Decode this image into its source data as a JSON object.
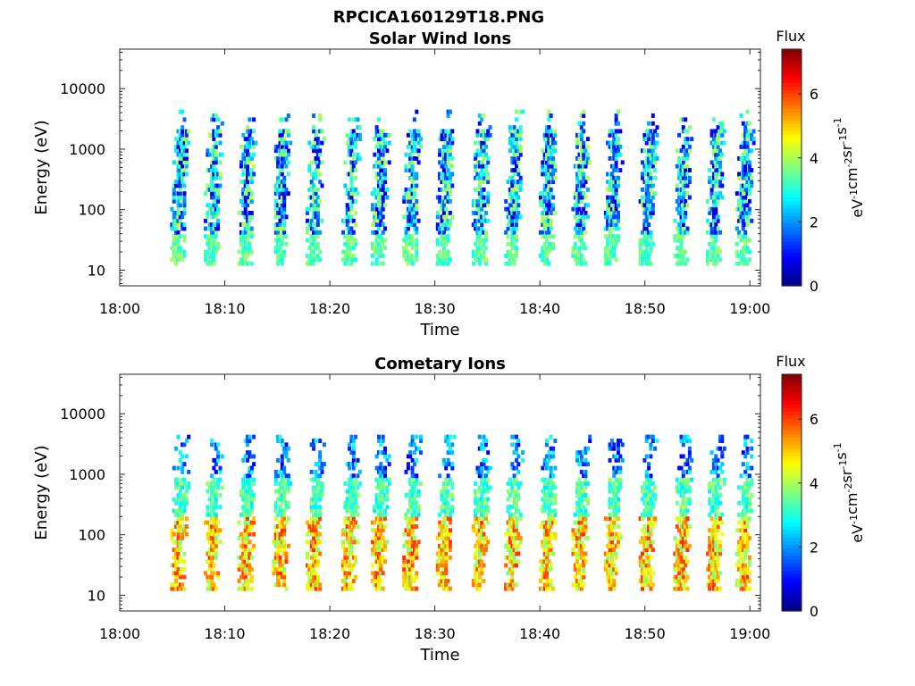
{
  "figure_title": "RPCICA160129T18.PNG",
  "chart_data": [
    {
      "type": "heatmap",
      "title": "Solar Wind Ions",
      "xlabel": "Time",
      "ylabel": "Energy (eV)",
      "xticks": [
        "18:00",
        "18:10",
        "18:20",
        "18:30",
        "18:40",
        "18:50",
        "19:00"
      ],
      "xlim": [
        "18:00",
        "19:01"
      ],
      "yscale": "log",
      "yticks": [
        10,
        100,
        1000,
        10000
      ],
      "ytick_labels": [
        "10",
        "100",
        "1000",
        "10000"
      ],
      "ylim": [
        5.5,
        45000
      ],
      "colorbar": {
        "title": "Flux",
        "label": "eV-1cm-2sr-1s-1",
        "ticks": [
          0,
          2,
          4,
          6
        ],
        "tick_labels": [
          "0",
          "2",
          "4",
          "6"
        ],
        "range": [
          0,
          7.4
        ],
        "colormap": "jet"
      },
      "bursts_minutes": [
        5.5,
        8.7,
        11.9,
        15.2,
        18.4,
        21.8,
        24.6,
        27.6,
        30.8,
        34.2,
        37.3,
        40.6,
        43.7,
        46.8,
        50.1,
        53.4,
        56.5,
        59.3
      ],
      "dominant_energy_range_eV": [
        15,
        4000
      ],
      "dominant_flux_range": [
        0.5,
        4.2
      ]
    },
    {
      "type": "heatmap",
      "title": "Cometary Ions",
      "xlabel": "Time",
      "ylabel": "Energy (eV)",
      "xticks": [
        "18:00",
        "18:10",
        "18:20",
        "18:30",
        "18:40",
        "18:50",
        "19:00"
      ],
      "xlim": [
        "18:00",
        "19:01"
      ],
      "yscale": "log",
      "yticks": [
        10,
        100,
        1000,
        10000
      ],
      "ytick_labels": [
        "10",
        "100",
        "1000",
        "10000"
      ],
      "ylim": [
        5.5,
        45000
      ],
      "colorbar": {
        "title": "Flux",
        "label": "eV-1cm-2sr-1s-1",
        "ticks": [
          0,
          2,
          4,
          6
        ],
        "tick_labels": [
          "0",
          "2",
          "4",
          "6"
        ],
        "range": [
          0,
          7.4
        ],
        "colormap": "jet"
      },
      "bursts_minutes": [
        5.5,
        8.7,
        11.9,
        15.2,
        18.4,
        21.8,
        24.6,
        27.6,
        30.8,
        34.2,
        37.3,
        40.6,
        43.7,
        46.8,
        50.1,
        53.4,
        56.5,
        59.3
      ],
      "dominant_energy_range_eV": [
        12,
        2000
      ],
      "dominant_flux_range": [
        2.5,
        6.2
      ]
    }
  ]
}
